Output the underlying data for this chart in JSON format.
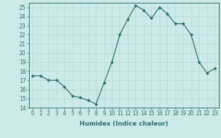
{
  "x": [
    0,
    1,
    2,
    3,
    4,
    5,
    6,
    7,
    8,
    9,
    10,
    11,
    12,
    13,
    14,
    15,
    16,
    17,
    18,
    19,
    20,
    21,
    22,
    23
  ],
  "y": [
    17.5,
    17.5,
    17.0,
    17.0,
    16.3,
    15.3,
    15.1,
    14.8,
    14.4,
    16.7,
    19.0,
    22.0,
    23.7,
    25.2,
    24.7,
    23.8,
    25.0,
    24.3,
    23.2,
    23.2,
    22.0,
    19.0,
    17.8,
    18.3
  ],
  "xlim": [
    -0.5,
    23.5
  ],
  "ylim": [
    14,
    25.5
  ],
  "yticks": [
    14,
    15,
    16,
    17,
    18,
    19,
    20,
    21,
    22,
    23,
    24,
    25
  ],
  "xticks": [
    0,
    1,
    2,
    3,
    4,
    5,
    6,
    7,
    8,
    9,
    10,
    11,
    12,
    13,
    14,
    15,
    16,
    17,
    18,
    19,
    20,
    21,
    22,
    23
  ],
  "xlabel": "Humidex (Indice chaleur)",
  "line_color": "#2d6e6e",
  "marker_color": "#2d6e6e",
  "bg_color": "#cceae8",
  "grid_color": "#b0d8d8",
  "tick_fontsize": 5.5,
  "xlabel_fontsize": 6.5
}
